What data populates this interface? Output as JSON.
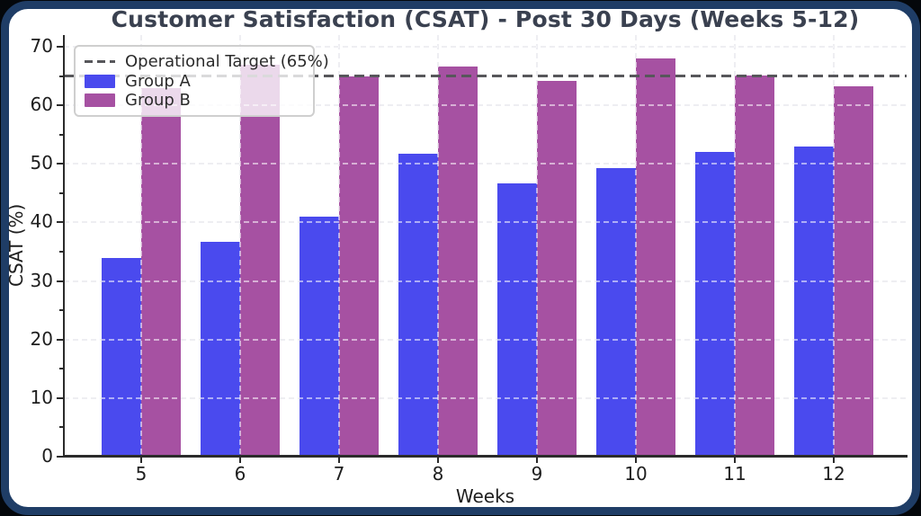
{
  "frame": {
    "background": "#04070b",
    "border_color": "#1f3d66",
    "card_background": "#ffffff"
  },
  "chart_data": {
    "type": "bar",
    "title": "Customer Satisfaction (CSAT) - Post 30 Days (Weeks 5-12)",
    "xlabel": "Weeks",
    "ylabel": "CSAT (%)",
    "categories": [
      5,
      6,
      7,
      8,
      9,
      10,
      11,
      12
    ],
    "series": [
      {
        "name": "Group A",
        "color": "#4a4aee",
        "values": [
          34.0,
          36.7,
          41.0,
          51.7,
          46.6,
          49.3,
          52.1,
          53.0
        ]
      },
      {
        "name": "Group B",
        "color": "#a651a2",
        "values": [
          63.0,
          67.0,
          65.0,
          66.6,
          64.2,
          68.0,
          65.1,
          63.3
        ]
      }
    ],
    "target_line": {
      "label": "Operational Target (65%)",
      "value": 65,
      "color": "#57575b",
      "style": "dashed"
    },
    "ylim": [
      0,
      72
    ],
    "yticks": [
      0,
      10,
      20,
      30,
      40,
      50,
      60,
      70
    ],
    "yticks_minor": [
      5,
      15,
      25,
      35,
      45,
      55,
      65
    ],
    "grid": true,
    "grid_style": "dashed",
    "legend_position": "upper left",
    "legend_entries": [
      "Operational Target (65%)",
      "Group A",
      "Group B"
    ]
  }
}
